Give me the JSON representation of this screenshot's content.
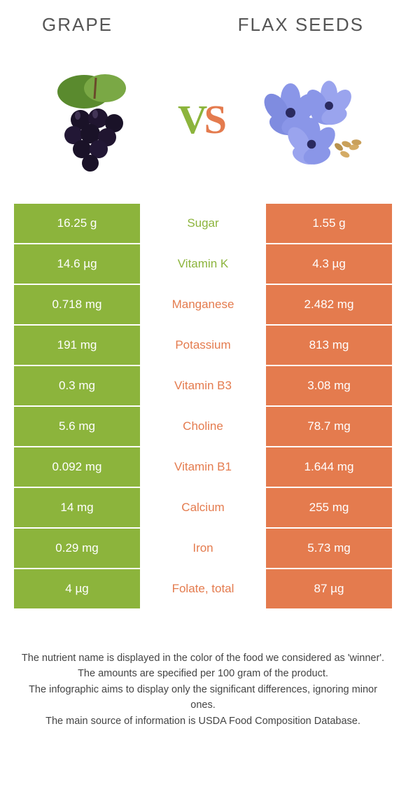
{
  "colors": {
    "left_bg": "#8cb43c",
    "right_bg": "#e47b4e",
    "left_text": "#8cb43c",
    "right_text": "#e47b4e",
    "header_text": "#555555",
    "footer_text": "#444444",
    "vs_v": "#8cb43c",
    "vs_s": "#e47b4e"
  },
  "header": {
    "left_title": "Grape",
    "right_title": "Flax seeds"
  },
  "rows": [
    {
      "left": "16.25 g",
      "label": "Sugar",
      "right": "1.55 g",
      "winner": "left"
    },
    {
      "left": "14.6 µg",
      "label": "Vitamin K",
      "right": "4.3 µg",
      "winner": "left"
    },
    {
      "left": "0.718 mg",
      "label": "Manganese",
      "right": "2.482 mg",
      "winner": "right"
    },
    {
      "left": "191 mg",
      "label": "Potassium",
      "right": "813 mg",
      "winner": "right"
    },
    {
      "left": "0.3 mg",
      "label": "Vitamin B3",
      "right": "3.08 mg",
      "winner": "right"
    },
    {
      "left": "5.6 mg",
      "label": "Choline",
      "right": "78.7 mg",
      "winner": "right"
    },
    {
      "left": "0.092 mg",
      "label": "Vitamin B1",
      "right": "1.644 mg",
      "winner": "right"
    },
    {
      "left": "14 mg",
      "label": "Calcium",
      "right": "255 mg",
      "winner": "right"
    },
    {
      "left": "0.29 mg",
      "label": "Iron",
      "right": "5.73 mg",
      "winner": "right"
    },
    {
      "left": "4 µg",
      "label": "Folate, total",
      "right": "87 µg",
      "winner": "right"
    }
  ],
  "footer": {
    "line1": "The nutrient name is displayed in the color of the food we considered as 'winner'.",
    "line2": "The amounts are specified per 100 gram of the product.",
    "line3": "The infographic aims to display only the significant differences, ignoring minor ones.",
    "line4": "The main source of information is USDA Food Composition Database."
  }
}
